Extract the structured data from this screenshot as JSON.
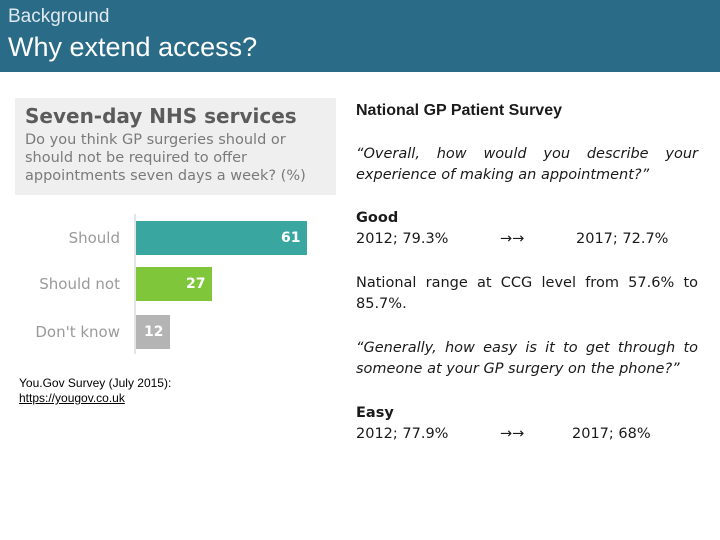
{
  "header": {
    "eyebrow": "Background",
    "title": "Why extend access?",
    "color": "#2a6b87"
  },
  "yougov": {
    "title": "Seven-day NHS services",
    "question": "Do you think GP surgeries should or should not be required to offer appointments seven days a week? (%)",
    "credit_line": "You.Gov Survey (July 2015):",
    "credit_link": "https://yougov.co.uk"
  },
  "chart_data": {
    "type": "bar",
    "orientation": "horizontal",
    "title": "Seven-day NHS services",
    "categories": [
      "Should",
      "Should not",
      "Don't know"
    ],
    "values": [
      61,
      27,
      12
    ],
    "colors": [
      "#3aa6a0",
      "#7fc63a",
      "#b4b4b4"
    ],
    "xlim": [
      0,
      61
    ]
  },
  "survey": {
    "heading": "National GP Patient Survey",
    "q1": "“Overall, how would you describe your experience of making an appointment?”",
    "q1_answer": "Good",
    "q1_from": "2012; 79.3%",
    "q1_arrow": "→→",
    "q1_to": "2017; 72.7%",
    "range_note": "National range at CCG level from 57.6% to 85.7%.",
    "q2": "“Generally, how easy is it to get through to someone at your GP surgery on the phone?”",
    "q2_answer": "Easy",
    "q2_from": "2012; 77.9%",
    "q2_arrow": "→→",
    "q2_to": "2017; 68%"
  }
}
